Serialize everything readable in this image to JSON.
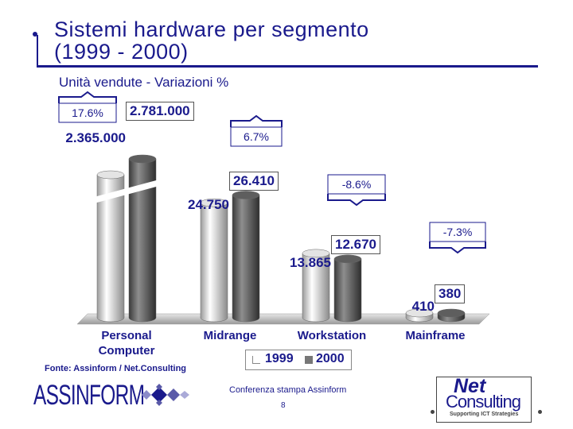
{
  "title": {
    "line1": "Sistemi hardware per segmento",
    "line2": "(1999 - 2000)"
  },
  "subtitle": "Unità vendute - Variazioni %",
  "chart_data": {
    "type": "bar",
    "style": "3d-cylinder",
    "categories": [
      "Personal Computer",
      "Midrange",
      "Workstation",
      "Mainframe"
    ],
    "series": [
      {
        "name": "1999",
        "values": [
          2365000,
          24750,
          13865,
          410
        ],
        "labels": [
          "2.365.000",
          "24.750",
          "13.865",
          "410"
        ],
        "color": "#d9d9d9"
      },
      {
        "name": "2000",
        "values": [
          2781000,
          26410,
          12670,
          380
        ],
        "labels": [
          "2.781.000",
          "26.410",
          "12.670",
          "380"
        ],
        "color": "#555555"
      }
    ],
    "changes": [
      "17.6%",
      "6.7%",
      "-8.6%",
      "-7.3%"
    ],
    "axis_break": "Personal Computer",
    "legend_position": "bottom",
    "grid": false
  },
  "legend": {
    "items": [
      "1999",
      "2000"
    ]
  },
  "footer": {
    "source": "Fonte: Assinform / Net.Consulting",
    "conference": "Conferenza stampa Assinform",
    "page": "8",
    "logo_left": "ASSINFORM",
    "logo_right_top": "Net",
    "logo_right_mid": "Consulting",
    "logo_right_sub": "Supporting ICT Strategies"
  }
}
